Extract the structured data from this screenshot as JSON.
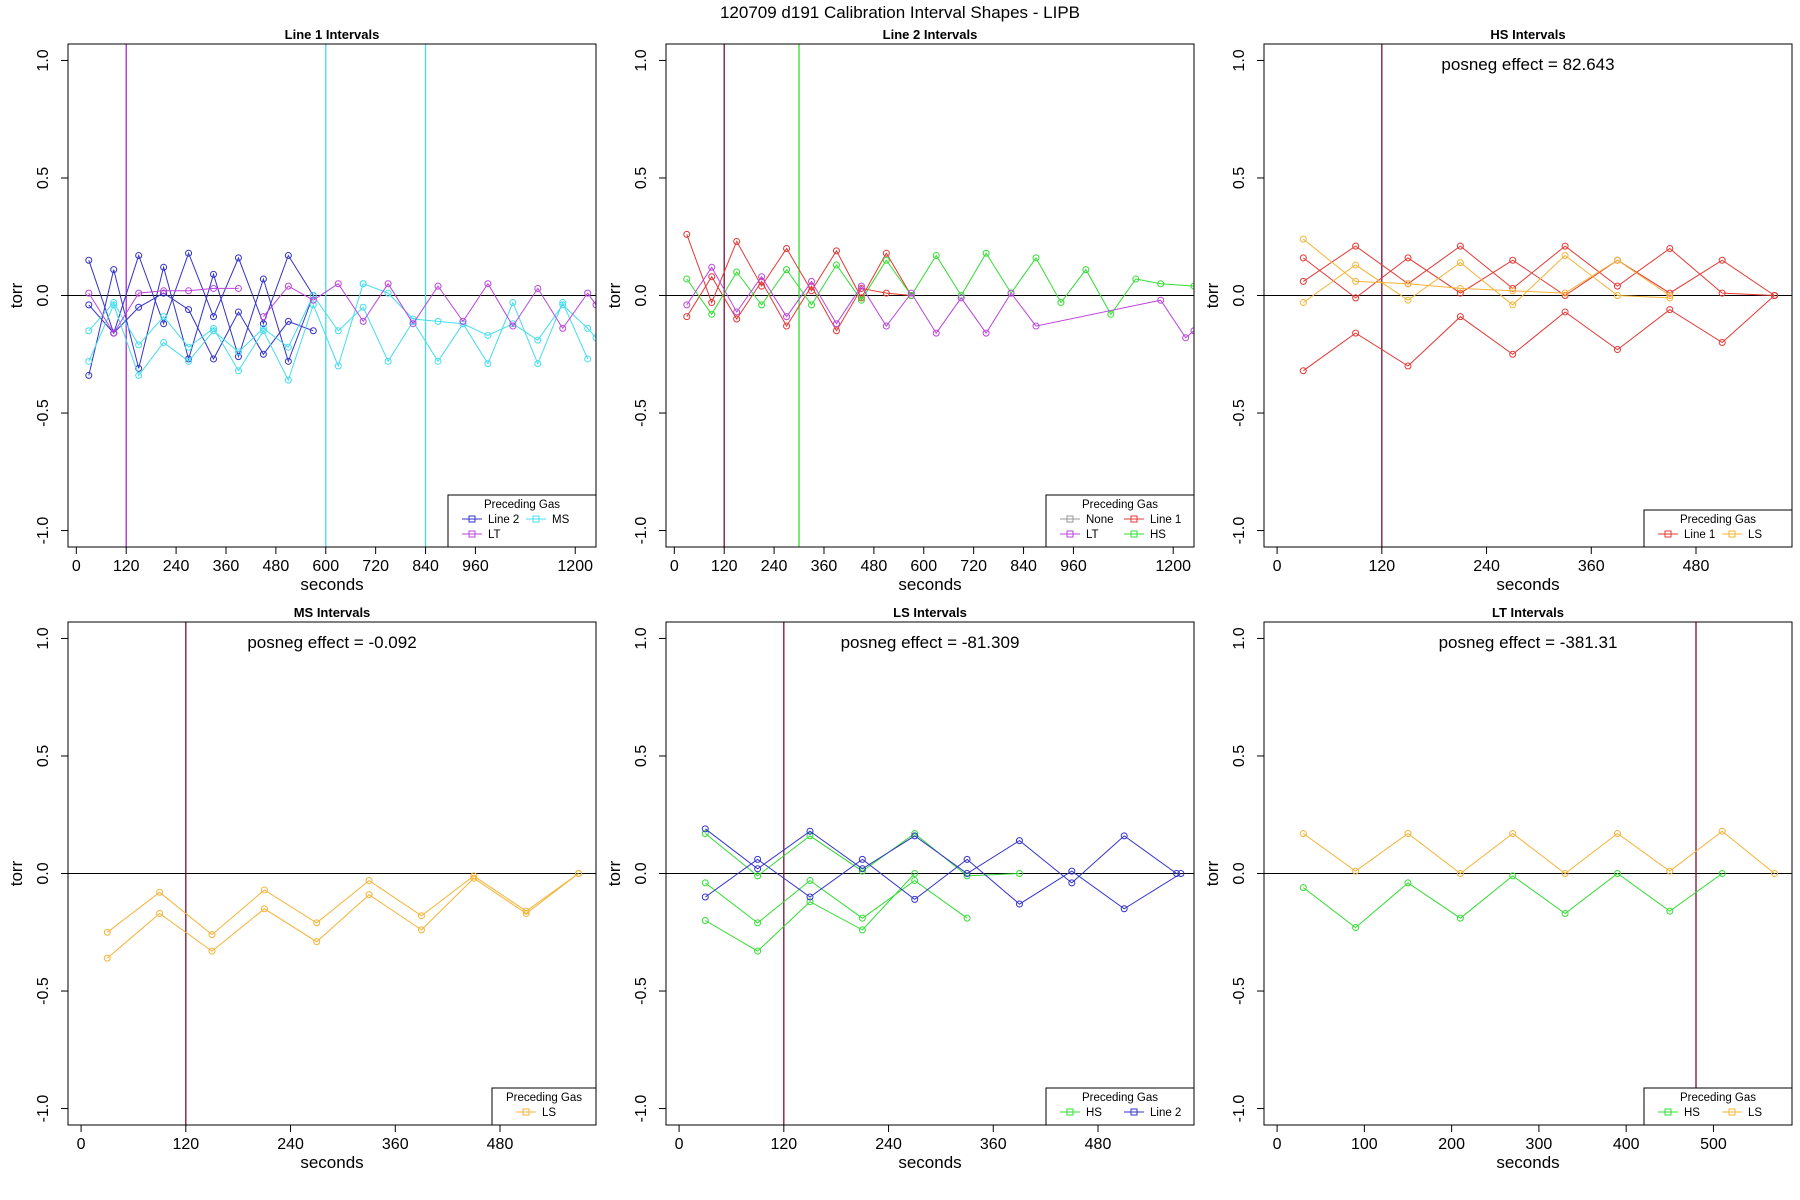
{
  "suptitle": "120709   d191   Calibration Interval Shapes - LIPB",
  "colors": {
    "Line 1": "#e53935",
    "Line 2": "#3333cc",
    "HS": "#33dd33",
    "MS": "#44ddee",
    "LS": "#f5b335",
    "LT": "#bb44dd",
    "None": "#999999",
    "dark": "#7a1030"
  },
  "chart_data": [
    {
      "type": "line",
      "title": "Line 1 Intervals",
      "xlabel": "seconds",
      "ylabel": "torr",
      "xlim": [
        -20,
        1250
      ],
      "ylim": [
        -1.07,
        1.07
      ],
      "xticks": [
        0,
        120,
        240,
        360,
        480,
        600,
        720,
        840,
        960,
        1200
      ],
      "yticks": [
        -1.0,
        -0.5,
        0.0,
        0.5,
        1.0
      ],
      "vlines": [
        {
          "x": 120,
          "color": "Line 2"
        },
        {
          "x": 120,
          "color": "LT"
        },
        {
          "x": 600,
          "color": "MS"
        },
        {
          "x": 840,
          "color": "MS"
        }
      ],
      "legend": {
        "title": "Preceding Gas",
        "entries": [
          "Line 2",
          "LT",
          "MS"
        ],
        "position": "bottom-right"
      },
      "series": [
        {
          "name": "Line 2",
          "x": [
            30,
            90,
            150,
            210,
            270,
            330,
            390,
            450,
            510,
            570
          ],
          "y": [
            0.15,
            -0.16,
            0.17,
            -0.12,
            0.18,
            -0.09,
            0.16,
            -0.12,
            0.17,
            0.0
          ]
        },
        {
          "name": "Line 2",
          "x": [
            30,
            90,
            150,
            210,
            270,
            330,
            390,
            450,
            510,
            570
          ],
          "y": [
            -0.34,
            0.11,
            -0.31,
            0.12,
            -0.27,
            0.09,
            -0.26,
            0.07,
            -0.28,
            0.0
          ]
        },
        {
          "name": "Line 2",
          "x": [
            30,
            90,
            150,
            210,
            270,
            330,
            390,
            450,
            510,
            570
          ],
          "y": [
            -0.04,
            -0.16,
            -0.05,
            0.01,
            -0.06,
            -0.27,
            -0.07,
            -0.25,
            -0.11,
            -0.15
          ]
        },
        {
          "name": "MS",
          "x": [
            30,
            90,
            150,
            210,
            270,
            330,
            390,
            450,
            510,
            570,
            630,
            690
          ],
          "y": [
            -0.15,
            -0.03,
            -0.21,
            -0.09,
            -0.22,
            -0.14,
            -0.32,
            -0.15,
            -0.36,
            -0.04,
            -0.3,
            0.05
          ]
        },
        {
          "name": "MS",
          "x": [
            30,
            90,
            150,
            210,
            270,
            330,
            390,
            450,
            510,
            570,
            630,
            690,
            750,
            810,
            870,
            930,
            990,
            1050,
            1110,
            1170,
            1230
          ],
          "y": [
            -0.28,
            -0.04,
            -0.34,
            -0.2,
            -0.28,
            -0.15,
            -0.24,
            -0.14,
            -0.22,
            0.0,
            -0.15,
            -0.05,
            -0.28,
            -0.11,
            -0.28,
            -0.12,
            -0.29,
            -0.03,
            -0.29,
            -0.03,
            -0.27
          ]
        },
        {
          "name": "MS",
          "x": [
            690,
            750,
            810,
            870,
            930,
            990,
            1050,
            1110,
            1170,
            1230,
            1250
          ],
          "y": [
            0.05,
            0.01,
            -0.1,
            -0.11,
            -0.12,
            -0.17,
            -0.12,
            -0.19,
            -0.04,
            -0.14,
            -0.18
          ]
        },
        {
          "name": "LT",
          "x": [
            30,
            90,
            150,
            210,
            270,
            330,
            390
          ],
          "y": [
            0.01,
            -0.16,
            0.01,
            0.02,
            0.02,
            0.03,
            0.03
          ]
        },
        {
          "name": "LT",
          "x": [
            450,
            510,
            570,
            630,
            690,
            750,
            810,
            870,
            930,
            990,
            1050,
            1110,
            1170,
            1230,
            1250
          ],
          "y": [
            -0.09,
            0.04,
            -0.02,
            0.05,
            -0.11,
            0.05,
            -0.12,
            0.04,
            -0.11,
            0.05,
            -0.13,
            0.03,
            -0.14,
            0.01,
            -0.04
          ]
        }
      ]
    },
    {
      "type": "line",
      "title": "Line 2 Intervals",
      "xlabel": "seconds",
      "ylabel": "torr",
      "xlim": [
        -20,
        1250
      ],
      "ylim": [
        -1.07,
        1.07
      ],
      "xticks": [
        0,
        120,
        240,
        360,
        480,
        600,
        720,
        840,
        960,
        1200
      ],
      "yticks": [
        -1.0,
        -0.5,
        0.0,
        0.5,
        1.0
      ],
      "vlines": [
        {
          "x": 120,
          "color": "dark"
        },
        {
          "x": 300,
          "color": "HS"
        }
      ],
      "legend": {
        "title": "Preceding Gas",
        "entries": [
          "None",
          "LT",
          "Line 1",
          "HS"
        ],
        "position": "bottom-right"
      },
      "series": [
        {
          "name": "Line 1",
          "x": [
            30,
            90,
            150,
            210,
            270,
            330,
            390,
            450,
            510,
            570
          ],
          "y": [
            0.26,
            -0.03,
            0.23,
            0.04,
            0.2,
            0.02,
            0.19,
            -0.01,
            0.18,
            0.0
          ]
        },
        {
          "name": "Line 1",
          "x": [
            30,
            90,
            150,
            210,
            270,
            330,
            390,
            450,
            510,
            570
          ],
          "y": [
            -0.09,
            0.08,
            -0.1,
            0.06,
            -0.13,
            0.04,
            -0.15,
            0.03,
            0.01,
            0.0
          ]
        },
        {
          "name": "HS",
          "x": [
            30,
            90,
            150,
            210,
            270,
            330,
            390,
            450,
            510,
            570,
            630,
            690,
            750,
            810,
            870,
            930,
            990,
            1050,
            1110,
            1170,
            1250
          ],
          "y": [
            0.07,
            -0.08,
            0.1,
            -0.04,
            0.11,
            -0.04,
            0.13,
            -0.02,
            0.15,
            0.0,
            0.17,
            0.0,
            0.18,
            0.01,
            0.16,
            -0.03,
            0.11,
            -0.08,
            0.07,
            0.05,
            0.04
          ]
        },
        {
          "name": "LT",
          "x": [
            30,
            90,
            150,
            210,
            270,
            330,
            390,
            450,
            510,
            570,
            630,
            690,
            750,
            810,
            870,
            1170,
            1230,
            1250
          ],
          "y": [
            -0.04,
            0.12,
            -0.07,
            0.08,
            -0.09,
            0.06,
            -0.12,
            0.04,
            -0.13,
            0.01,
            -0.16,
            -0.01,
            -0.16,
            0.01,
            -0.13,
            -0.02,
            -0.18,
            -0.15
          ]
        }
      ]
    },
    {
      "type": "line",
      "title": "HS Intervals",
      "xlabel": "seconds",
      "ylabel": "torr",
      "xlim": [
        -15,
        590
      ],
      "ylim": [
        -1.07,
        1.07
      ],
      "xticks": [
        0,
        120,
        240,
        360,
        480
      ],
      "yticks": [
        -1.0,
        -0.5,
        0.0,
        0.5,
        1.0
      ],
      "vlines": [
        {
          "x": 120,
          "color": "dark"
        }
      ],
      "annotation": "posneg effect = 82.643",
      "legend": {
        "title": "Preceding Gas",
        "entries": [
          "Line 1",
          "LS"
        ],
        "position": "bottom-right"
      },
      "series": [
        {
          "name": "Line 1",
          "x": [
            30,
            90,
            150,
            210,
            270,
            330,
            390,
            450,
            510,
            570
          ],
          "y": [
            0.16,
            -0.01,
            0.16,
            0.01,
            0.15,
            0.0,
            0.15,
            0.01,
            0.15,
            0.0
          ]
        },
        {
          "name": "Line 1",
          "x": [
            30,
            90,
            150,
            210,
            270,
            330,
            390,
            450,
            510,
            570
          ],
          "y": [
            0.06,
            0.21,
            0.05,
            0.21,
            0.03,
            0.21,
            0.04,
            0.2,
            0.01,
            0.0
          ]
        },
        {
          "name": "Line 1",
          "x": [
            30,
            90,
            150,
            210,
            270,
            330,
            390,
            450,
            510,
            570
          ],
          "y": [
            -0.32,
            -0.16,
            -0.3,
            -0.09,
            -0.25,
            -0.07,
            -0.23,
            -0.06,
            -0.2,
            0.0
          ]
        },
        {
          "name": "LS",
          "x": [
            30,
            90,
            150,
            210,
            270,
            330,
            390,
            450
          ],
          "y": [
            0.24,
            0.06,
            0.05,
            0.03,
            0.02,
            0.01,
            0.15,
            0.0
          ]
        },
        {
          "name": "LS",
          "x": [
            30,
            90,
            150,
            210,
            270,
            330,
            390,
            450
          ],
          "y": [
            -0.03,
            0.13,
            -0.02,
            0.14,
            -0.04,
            0.17,
            0.0,
            -0.01
          ]
        }
      ]
    },
    {
      "type": "line",
      "title": "MS Intervals",
      "xlabel": "seconds",
      "ylabel": "torr",
      "xlim": [
        -15,
        590
      ],
      "ylim": [
        -1.07,
        1.07
      ],
      "xticks": [
        0,
        120,
        240,
        360,
        480
      ],
      "yticks": [
        -1.0,
        -0.5,
        0.0,
        0.5,
        1.0
      ],
      "vlines": [
        {
          "x": 120,
          "color": "dark"
        }
      ],
      "annotation": "posneg effect = -0.092",
      "legend": {
        "title": "Preceding Gas",
        "entries": [
          "LS"
        ],
        "position": "bottom-right"
      },
      "series": [
        {
          "name": "LS",
          "x": [
            30,
            90,
            150,
            210,
            270,
            330,
            390,
            450,
            510,
            570
          ],
          "y": [
            -0.25,
            -0.08,
            -0.26,
            -0.07,
            -0.21,
            -0.03,
            -0.18,
            -0.01,
            -0.16,
            0.0
          ]
        },
        {
          "name": "LS",
          "x": [
            30,
            90,
            150,
            210,
            270,
            330,
            390,
            450,
            510,
            570
          ],
          "y": [
            -0.36,
            -0.17,
            -0.33,
            -0.15,
            -0.29,
            -0.09,
            -0.24,
            -0.02,
            -0.17,
            0.0
          ]
        }
      ]
    },
    {
      "type": "line",
      "title": "LS Intervals",
      "xlabel": "seconds",
      "ylabel": "torr",
      "xlim": [
        -15,
        590
      ],
      "ylim": [
        -1.07,
        1.07
      ],
      "xticks": [
        0,
        120,
        240,
        360,
        480
      ],
      "yticks": [
        -1.0,
        -0.5,
        0.0,
        0.5,
        1.0
      ],
      "vlines": [
        {
          "x": 120,
          "color": "dark"
        }
      ],
      "annotation": "posneg effect = -81.309",
      "legend": {
        "title": "Preceding Gas",
        "entries": [
          "HS",
          "Line 2"
        ],
        "position": "bottom-right"
      },
      "series": [
        {
          "name": "HS",
          "x": [
            30,
            90,
            150,
            210,
            270,
            330,
            390
          ],
          "y": [
            0.17,
            -0.01,
            0.16,
            0.01,
            0.17,
            -0.01,
            0.0
          ]
        },
        {
          "name": "HS",
          "x": [
            30,
            90,
            150,
            210,
            270,
            330
          ],
          "y": [
            -0.04,
            -0.21,
            -0.03,
            -0.19,
            -0.03,
            -0.19
          ]
        },
        {
          "name": "HS",
          "x": [
            30,
            90,
            150,
            210,
            270
          ],
          "y": [
            -0.2,
            -0.33,
            -0.12,
            -0.24,
            0.0
          ]
        },
        {
          "name": "Line 2",
          "x": [
            30,
            90,
            150,
            210,
            270,
            330,
            390,
            450,
            510,
            570
          ],
          "y": [
            0.19,
            0.02,
            0.18,
            0.02,
            0.16,
            0.0,
            0.14,
            -0.04,
            0.16,
            0.0
          ]
        },
        {
          "name": "Line 2",
          "x": [
            30,
            90,
            150,
            210,
            270,
            330,
            390,
            450,
            510,
            575
          ],
          "y": [
            -0.1,
            0.06,
            -0.1,
            0.06,
            -0.11,
            0.06,
            -0.13,
            0.01,
            -0.15,
            0.0
          ]
        }
      ]
    },
    {
      "type": "line",
      "title": "LT Intervals",
      "xlabel": "seconds",
      "ylabel": "torr",
      "xlim": [
        -15,
        590
      ],
      "ylim": [
        -1.07,
        1.07
      ],
      "xticks": [
        0,
        100,
        200,
        300,
        400,
        500
      ],
      "yticks": [
        -1.0,
        -0.5,
        0.0,
        0.5,
        1.0
      ],
      "vlines": [
        {
          "x": 480,
          "color": "dark"
        }
      ],
      "annotation": "posneg effect = -381.31",
      "legend": {
        "title": "Preceding Gas",
        "entries": [
          "HS",
          "LS"
        ],
        "position": "bottom-right"
      },
      "series": [
        {
          "name": "LS",
          "x": [
            30,
            90,
            150,
            210,
            270,
            330,
            390,
            450,
            510,
            570
          ],
          "y": [
            0.17,
            0.01,
            0.17,
            0.0,
            0.17,
            0.0,
            0.17,
            0.01,
            0.18,
            0.0
          ]
        },
        {
          "name": "HS",
          "x": [
            30,
            90,
            150,
            210,
            270,
            330,
            390,
            450,
            510
          ],
          "y": [
            -0.06,
            -0.23,
            -0.04,
            -0.19,
            -0.01,
            -0.17,
            0.0,
            -0.16,
            0.0
          ]
        }
      ]
    }
  ]
}
